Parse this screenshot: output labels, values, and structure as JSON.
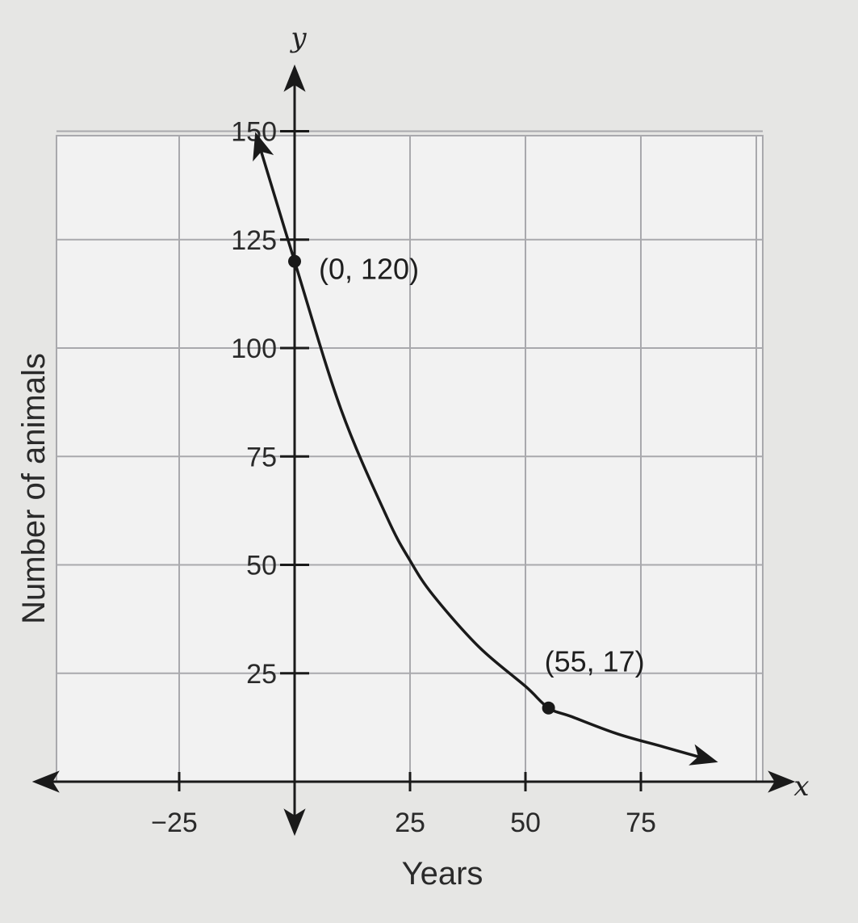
{
  "chart_data": {
    "type": "line",
    "title": "",
    "xlabel": "Years",
    "ylabel": "Number of animals",
    "x_axis_var": "y",
    "x_axis_letter": "x",
    "xlim": [
      -50,
      100
    ],
    "ylim": [
      -10,
      150
    ],
    "x_ticks": [
      -25,
      25,
      50,
      75
    ],
    "x_tick_labels": [
      "−25",
      "25",
      "50",
      "75"
    ],
    "y_ticks": [
      25,
      50,
      75,
      100,
      125,
      150
    ],
    "y_tick_labels": [
      "25",
      "50",
      "75",
      "100",
      "125",
      "150"
    ],
    "grid": true,
    "series": [
      {
        "function": "exponential decay",
        "x": [
          -8,
          0,
          10,
          20,
          25,
          30,
          40,
          50,
          55,
          60,
          70,
          80,
          90
        ],
        "y": [
          148,
          120,
          86,
          61,
          51,
          43,
          31,
          22,
          17,
          15,
          11,
          8,
          5
        ]
      }
    ],
    "points": [
      {
        "x": 0,
        "y": 120,
        "label": "(0, 120)"
      },
      {
        "x": 55,
        "y": 17,
        "label": "(55, 17)"
      }
    ],
    "colors": {
      "background": "#e6e6e4",
      "grid": "#a9a9ad",
      "curve": "#1a1a1a",
      "text": "#2a2a2a"
    }
  }
}
